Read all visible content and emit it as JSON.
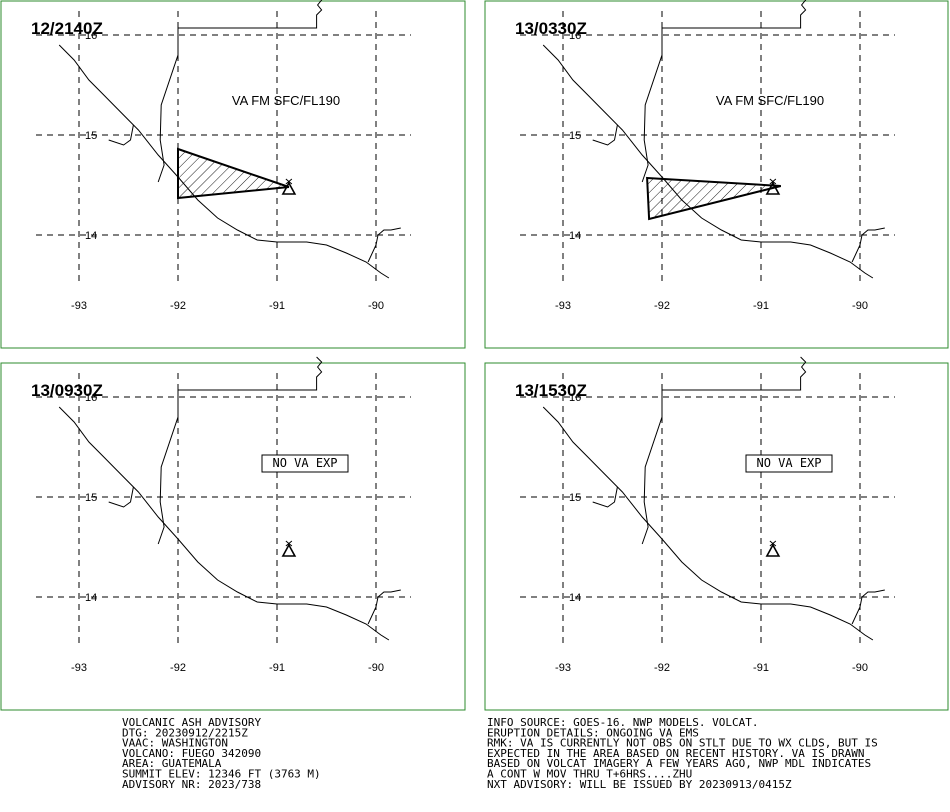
{
  "panels": [
    {
      "time": "12/2140Z",
      "label": "VA FM SFC/FL190",
      "label_boxed": false,
      "ash_polygon": [
        [
          -92.0,
          14.86
        ],
        [
          -90.88,
          14.48
        ],
        [
          -92.0,
          14.37
        ]
      ],
      "lon_ticks": [
        "-93",
        "-92",
        "-91",
        "-90"
      ],
      "lat_ticks": [
        "16",
        "15",
        "14"
      ]
    },
    {
      "time": "13/0330Z",
      "label": "VA FM SFC/FL190",
      "label_boxed": false,
      "ash_polygon": [
        [
          -92.15,
          14.57
        ],
        [
          -90.8,
          14.49
        ],
        [
          -92.13,
          14.16
        ]
      ],
      "lon_ticks": [
        "-93",
        "-92",
        "-91",
        "-90"
      ],
      "lat_ticks": [
        "16",
        "15",
        "14"
      ]
    },
    {
      "time": "13/0930Z",
      "label": "NO VA EXP",
      "label_boxed": true,
      "ash_polygon": [],
      "lon_ticks": [
        "-93",
        "-92",
        "-91",
        "-90"
      ],
      "lat_ticks": [
        "16",
        "15",
        "14"
      ]
    },
    {
      "time": "13/1530Z",
      "label": "NO VA EXP",
      "label_boxed": true,
      "ash_polygon": [],
      "lon_ticks": [
        "-93",
        "-92",
        "-91",
        "-90"
      ],
      "lat_ticks": [
        "16",
        "15",
        "14"
      ]
    }
  ],
  "volcano": {
    "lon": -90.88,
    "lat": 14.47,
    "icon": "volcano-triangle-icon"
  },
  "map_extent": {
    "lon_min": -93.3,
    "lon_max": -89.7,
    "lat_min": 13.55,
    "lat_max": 16.25
  },
  "advisory_left": [
    "VOLCANIC ASH ADVISORY",
    "DTG: 20230912/2215Z",
    "VAAC: WASHINGTON",
    "VOLCANO: FUEGO 342090",
    "AREA: GUATEMALA",
    "SUMMIT ELEV: 12346 FT (3763 M)",
    "ADVISORY NR: 2023/738"
  ],
  "advisory_right": [
    "INFO SOURCE: GOES-16. NWP MODELS. VOLCAT.",
    "ERUPTION DETAILS: ONGOING VA EMS",
    "RMK: VA IS CURRENTLY NOT OBS ON STLT DUE TO WX CLDS, BUT IS",
    "EXPECTED IN THE AREA BASED ON RECENT HISTORY. VA IS DRAWN",
    "BASED ON VOLCAT IMAGERY A FEW YEARS AGO, NWP MDL INDICATES",
    "A CONT W MOV THRU T+6HRS....ZHU",
    "NXT ADVISORY: WILL BE ISSUED BY 20230913/0415Z"
  ],
  "colors": {
    "panel_border": "#2e8b2e",
    "ink": "#000000",
    "background": "#ffffff"
  }
}
